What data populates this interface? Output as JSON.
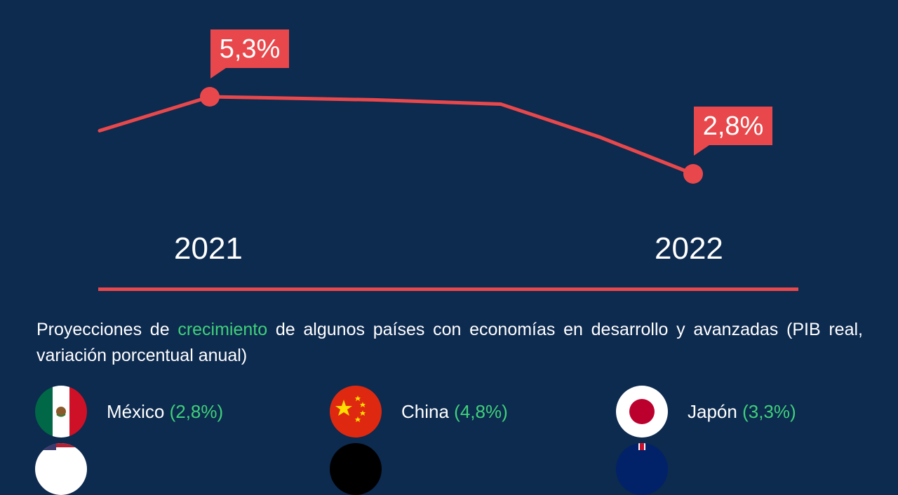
{
  "chart_data": {
    "type": "line",
    "x_labels": [
      "2021",
      "2022"
    ],
    "series": [
      {
        "values": [
          4.2,
          5.3,
          5.2,
          5.06,
          5.1,
          4.0,
          2.8
        ]
      }
    ],
    "annotations": [
      {
        "index": 1,
        "label": "5,3%"
      },
      {
        "index": 6,
        "label": "2,8%"
      }
    ],
    "line_color": "#e8484b",
    "background": "#0d2a4f"
  },
  "description": {
    "part1": "Proyecciones de ",
    "highlight": "crecimiento",
    "part2": " de algunos países con economías en desarrollo y avanzadas (PIB real, variación porcentual anual)"
  },
  "countries": [
    {
      "name": "México",
      "value": "(2,8%)",
      "flag": "mexico-flag-icon"
    },
    {
      "name": "China",
      "value": "(4,8%)",
      "flag": "china-flag-icon"
    },
    {
      "name": "Japón",
      "value": "(3,3%)",
      "flag": "japan-flag-icon"
    }
  ]
}
